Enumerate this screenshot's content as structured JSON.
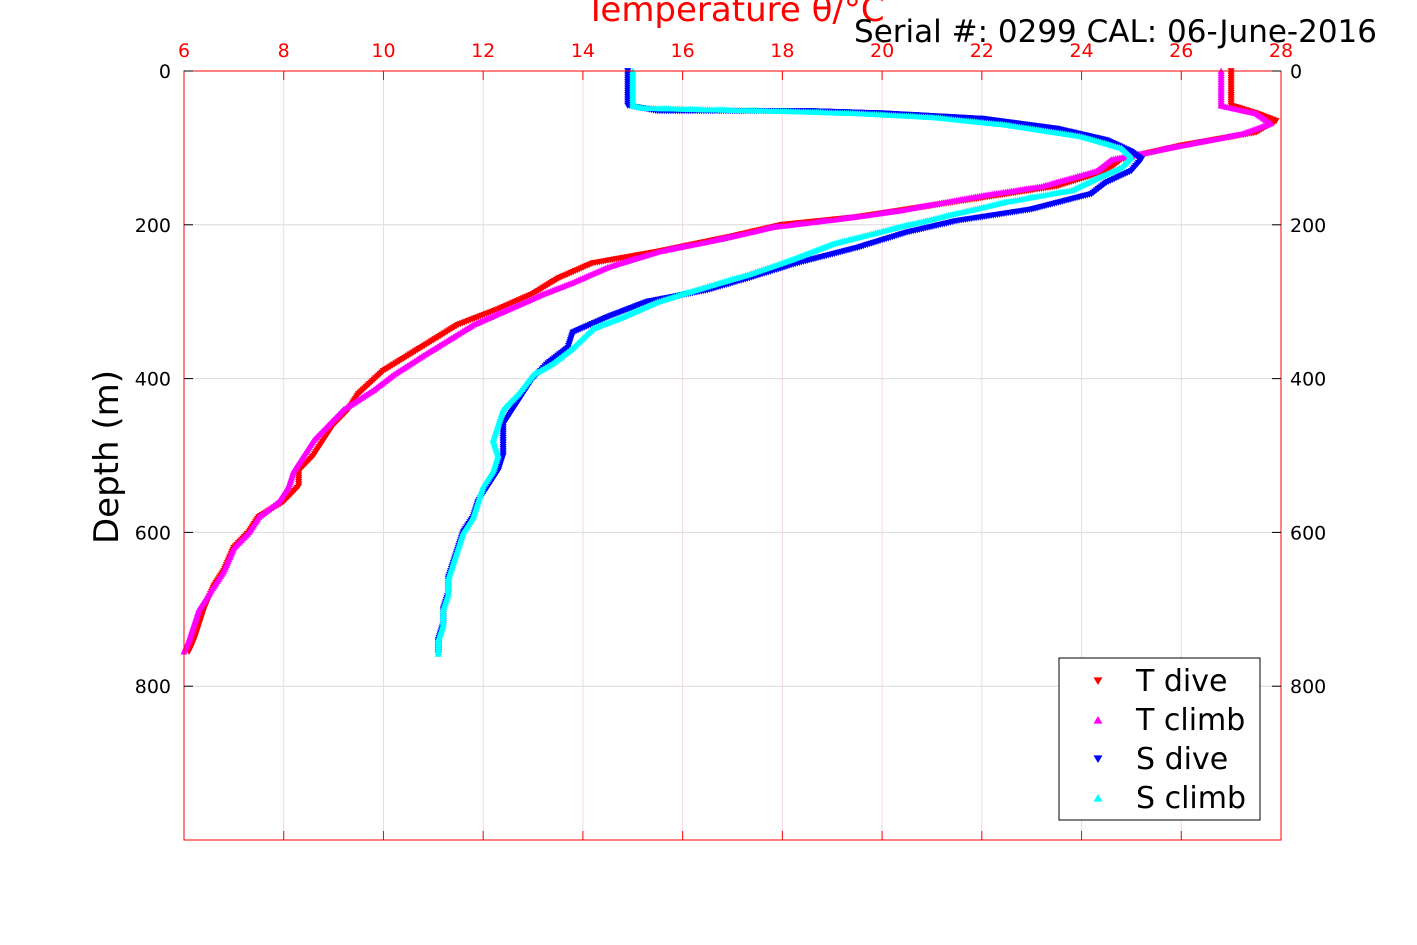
{
  "chart_data": {
    "type": "scatter",
    "title": "Temperature θ/°C",
    "title_color": "#ff0000",
    "annotation": "Serial #: 0299 CAL: 06-June-2016",
    "xlabel": "Temperature θ/°C",
    "ylabel": "Depth (m)",
    "xlim": [
      6,
      28
    ],
    "ylim": [
      0,
      1000
    ],
    "y_reversed": true,
    "x_axis_position": "top",
    "x_axis_color": "#ff0000",
    "x_ticks": [
      6,
      8,
      10,
      12,
      14,
      16,
      18,
      20,
      22,
      24,
      26,
      28
    ],
    "y_ticks": [
      0,
      200,
      400,
      600,
      800
    ],
    "y_tick_labels_right": true,
    "grid": true,
    "legend_position": "bottom-right",
    "series": [
      {
        "name": "T dive",
        "color": "#ff0000",
        "marker": "triangle-down",
        "points": [
          [
            27.0,
            0
          ],
          [
            27.0,
            20
          ],
          [
            27.0,
            45
          ],
          [
            27.5,
            55
          ],
          [
            27.9,
            65
          ],
          [
            27.5,
            80
          ],
          [
            26.0,
            97
          ],
          [
            24.8,
            115
          ],
          [
            24.5,
            130
          ],
          [
            23.5,
            150
          ],
          [
            22.5,
            160
          ],
          [
            20.5,
            180
          ],
          [
            19.5,
            190
          ],
          [
            18.0,
            200
          ],
          [
            17.0,
            215
          ],
          [
            15.5,
            235
          ],
          [
            14.2,
            250
          ],
          [
            13.5,
            270
          ],
          [
            13.0,
            290
          ],
          [
            12.3,
            310
          ],
          [
            11.5,
            330
          ],
          [
            11.0,
            350
          ],
          [
            10.5,
            370
          ],
          [
            10.0,
            390
          ],
          [
            9.5,
            420
          ],
          [
            9.3,
            440
          ],
          [
            9.0,
            460
          ],
          [
            8.8,
            480
          ],
          [
            8.6,
            500
          ],
          [
            8.3,
            520
          ],
          [
            8.3,
            540
          ],
          [
            8.0,
            560
          ],
          [
            7.5,
            580
          ],
          [
            7.3,
            600
          ],
          [
            7.0,
            620
          ],
          [
            6.8,
            650
          ],
          [
            6.6,
            670
          ],
          [
            6.4,
            700
          ],
          [
            6.3,
            720
          ],
          [
            6.2,
            740
          ],
          [
            6.1,
            755
          ]
        ]
      },
      {
        "name": "T climb",
        "color": "#ff00ff",
        "marker": "triangle-up",
        "points": [
          [
            26.8,
            0
          ],
          [
            26.8,
            20
          ],
          [
            26.8,
            45
          ],
          [
            27.5,
            55
          ],
          [
            27.8,
            68
          ],
          [
            27.2,
            82
          ],
          [
            26.0,
            97
          ],
          [
            24.6,
            115
          ],
          [
            24.3,
            130
          ],
          [
            23.2,
            150
          ],
          [
            22.0,
            162
          ],
          [
            20.3,
            182
          ],
          [
            19.2,
            192
          ],
          [
            17.8,
            203
          ],
          [
            16.8,
            218
          ],
          [
            15.5,
            235
          ],
          [
            14.5,
            255
          ],
          [
            13.8,
            275
          ],
          [
            13.2,
            290
          ],
          [
            12.5,
            310
          ],
          [
            11.8,
            330
          ],
          [
            11.3,
            350
          ],
          [
            10.8,
            370
          ],
          [
            10.2,
            395
          ],
          [
            9.8,
            415
          ],
          [
            9.2,
            440
          ],
          [
            8.9,
            460
          ],
          [
            8.6,
            480
          ],
          [
            8.4,
            500
          ],
          [
            8.2,
            520
          ],
          [
            8.1,
            540
          ],
          [
            7.9,
            560
          ],
          [
            7.5,
            580
          ],
          [
            7.3,
            600
          ],
          [
            7.0,
            620
          ],
          [
            6.8,
            650
          ],
          [
            6.6,
            670
          ],
          [
            6.3,
            700
          ],
          [
            6.2,
            720
          ],
          [
            6.1,
            740
          ],
          [
            6.0,
            755
          ]
        ]
      },
      {
        "name": "S dive",
        "color": "#0000ff",
        "marker": "triangle-down",
        "points": [
          [
            14.9,
            0
          ],
          [
            14.9,
            20
          ],
          [
            14.9,
            45
          ],
          [
            15.5,
            52
          ],
          [
            17.0,
            52
          ],
          [
            18.5,
            52
          ],
          [
            20.0,
            55
          ],
          [
            22.0,
            62
          ],
          [
            23.5,
            75
          ],
          [
            24.5,
            90
          ],
          [
            25.0,
            105
          ],
          [
            25.2,
            115
          ],
          [
            25.0,
            130
          ],
          [
            24.5,
            145
          ],
          [
            24.2,
            160
          ],
          [
            23.0,
            180
          ],
          [
            21.5,
            195
          ],
          [
            20.5,
            210
          ],
          [
            19.5,
            230
          ],
          [
            18.3,
            250
          ],
          [
            17.3,
            270
          ],
          [
            16.5,
            285
          ],
          [
            15.3,
            300
          ],
          [
            14.5,
            320
          ],
          [
            13.8,
            340
          ],
          [
            13.7,
            360
          ],
          [
            13.3,
            380
          ],
          [
            13.0,
            400
          ],
          [
            12.8,
            420
          ],
          [
            12.6,
            440
          ],
          [
            12.4,
            460
          ],
          [
            12.4,
            480
          ],
          [
            12.4,
            500
          ],
          [
            12.3,
            520
          ],
          [
            12.1,
            540
          ],
          [
            11.9,
            560
          ],
          [
            11.8,
            580
          ],
          [
            11.6,
            600
          ],
          [
            11.5,
            620
          ],
          [
            11.4,
            640
          ],
          [
            11.3,
            660
          ],
          [
            11.3,
            680
          ],
          [
            11.2,
            700
          ],
          [
            11.2,
            720
          ],
          [
            11.1,
            740
          ],
          [
            11.1,
            758
          ]
        ]
      },
      {
        "name": "S climb",
        "color": "#00ffff",
        "marker": "triangle-up",
        "points": [
          [
            15.0,
            0
          ],
          [
            15.0,
            20
          ],
          [
            15.0,
            45
          ],
          [
            15.2,
            48
          ],
          [
            16.5,
            50
          ],
          [
            18.0,
            52
          ],
          [
            19.5,
            55
          ],
          [
            21.0,
            60
          ],
          [
            22.5,
            70
          ],
          [
            24.0,
            85
          ],
          [
            24.8,
            100
          ],
          [
            25.0,
            112
          ],
          [
            24.8,
            125
          ],
          [
            24.3,
            140
          ],
          [
            23.8,
            155
          ],
          [
            22.5,
            170
          ],
          [
            21.5,
            185
          ],
          [
            20.2,
            205
          ],
          [
            19.0,
            225
          ],
          [
            18.2,
            245
          ],
          [
            17.3,
            265
          ],
          [
            16.5,
            280
          ],
          [
            15.5,
            300
          ],
          [
            14.8,
            320
          ],
          [
            14.2,
            335
          ],
          [
            13.8,
            360
          ],
          [
            13.4,
            380
          ],
          [
            13.0,
            395
          ],
          [
            12.7,
            420
          ],
          [
            12.4,
            440
          ],
          [
            12.3,
            460
          ],
          [
            12.2,
            480
          ],
          [
            12.3,
            500
          ],
          [
            12.2,
            520
          ],
          [
            12.0,
            540
          ],
          [
            11.9,
            560
          ],
          [
            11.8,
            580
          ],
          [
            11.6,
            600
          ],
          [
            11.5,
            620
          ],
          [
            11.4,
            640
          ],
          [
            11.3,
            660
          ],
          [
            11.3,
            680
          ],
          [
            11.2,
            700
          ],
          [
            11.2,
            720
          ],
          [
            11.1,
            740
          ],
          [
            11.1,
            758
          ]
        ]
      }
    ]
  }
}
